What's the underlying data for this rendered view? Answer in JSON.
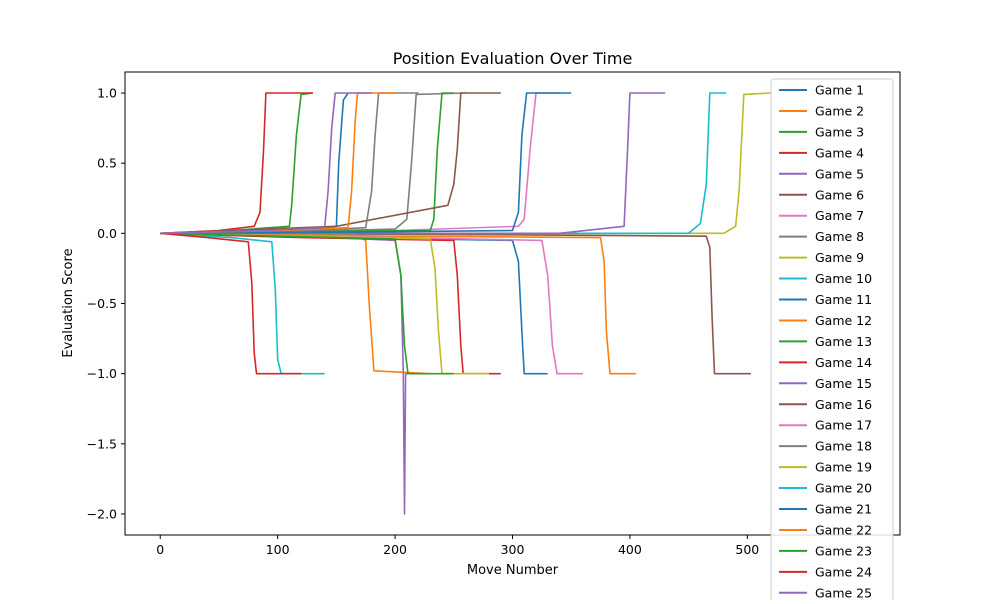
{
  "chart_data": {
    "type": "line",
    "title": "Position Evaluation Over Time",
    "xlabel": "Move Number",
    "ylabel": "Evaluation Score",
    "xlim": [
      -30,
      630
    ],
    "ylim": [
      -2.15,
      1.15
    ],
    "xticks": [
      0,
      100,
      200,
      300,
      400,
      500
    ],
    "yticks": [
      1.0,
      0.5,
      0.0,
      -0.5,
      -1.0,
      -1.5,
      -2.0
    ],
    "xtick_labels": [
      "0",
      "100",
      "200",
      "300",
      "400",
      "500"
    ],
    "ytick_labels": [
      "1.0",
      "0.5",
      "0.0",
      "−0.5",
      "−1.0",
      "−1.5",
      "−2.0"
    ],
    "grid": false,
    "legend_position": "upper-right",
    "colors": [
      "#1f77b4",
      "#ff7f0e",
      "#2ca02c",
      "#d62728",
      "#9467bd",
      "#8c564b",
      "#e377c2",
      "#7f7f7f",
      "#bcbd22",
      "#17becf"
    ],
    "series": [
      {
        "name": "Game 1",
        "x": [
          0,
          60,
          130,
          150,
          152,
          156,
          160
        ],
        "y": [
          0,
          0.01,
          0.03,
          0.05,
          0.5,
          0.95,
          1.0
        ]
      },
      {
        "name": "Game 2",
        "x": [
          0,
          80,
          170,
          175,
          178,
          182,
          230
        ],
        "y": [
          0,
          -0.02,
          -0.03,
          -0.05,
          -0.5,
          -0.98,
          -1.0
        ]
      },
      {
        "name": "Game 3",
        "x": [
          0,
          60,
          110,
          112,
          116,
          120,
          130
        ],
        "y": [
          0,
          0.02,
          0.05,
          0.2,
          0.7,
          0.99,
          1.0
        ]
      },
      {
        "name": "Game 4",
        "x": [
          0,
          50,
          80,
          85,
          88,
          90,
          130
        ],
        "y": [
          0,
          0.02,
          0.05,
          0.15,
          0.6,
          1.0,
          1.0
        ]
      },
      {
        "name": "Game 5",
        "x": [
          0,
          150,
          200,
          205,
          207,
          208,
          209,
          212
        ],
        "y": [
          0,
          -0.03,
          -0.05,
          -0.3,
          -1.0,
          -2.0,
          -1.0,
          -1.0
        ]
      },
      {
        "name": "Game 6",
        "x": [
          0,
          300,
          465,
          468,
          470,
          472,
          503
        ],
        "y": [
          0,
          -0.01,
          -0.02,
          -0.1,
          -0.6,
          -1.0,
          -1.0
        ]
      },
      {
        "name": "Game 7",
        "x": [
          0,
          200,
          305,
          310,
          315,
          320,
          340
        ],
        "y": [
          0,
          0.02,
          0.05,
          0.1,
          0.6,
          1.0,
          1.0
        ]
      },
      {
        "name": "Game 8",
        "x": [
          0,
          100,
          200,
          210,
          214,
          218,
          260
        ],
        "y": [
          0,
          0.01,
          0.03,
          0.1,
          0.5,
          0.99,
          1.0
        ]
      },
      {
        "name": "Game 9",
        "x": [
          0,
          300,
          480,
          490,
          493,
          497,
          520
        ],
        "y": [
          0,
          0.0,
          0.0,
          0.05,
          0.3,
          0.99,
          1.0
        ]
      },
      {
        "name": "Game 10",
        "x": [
          0,
          200,
          450,
          460,
          465,
          468,
          482
        ],
        "y": [
          0,
          0.0,
          0.0,
          0.07,
          0.35,
          1.0,
          1.0
        ]
      },
      {
        "name": "Game 11",
        "x": [
          0,
          150,
          300,
          305,
          308,
          310,
          330
        ],
        "y": [
          0,
          -0.03,
          -0.05,
          -0.2,
          -0.7,
          -1.0,
          -1.0
        ]
      },
      {
        "name": "Game 12",
        "x": [
          0,
          200,
          375,
          378,
          380,
          383,
          405
        ],
        "y": [
          0,
          -0.02,
          -0.03,
          -0.2,
          -0.7,
          -1.0,
          -1.0
        ]
      },
      {
        "name": "Game 13",
        "x": [
          0,
          100,
          230,
          233,
          236,
          240,
          250
        ],
        "y": [
          0,
          0.01,
          0.02,
          0.1,
          0.6,
          1.0,
          1.0
        ]
      },
      {
        "name": "Game 14",
        "x": [
          0,
          120,
          250,
          253,
          256,
          258,
          290
        ],
        "y": [
          0,
          -0.03,
          -0.05,
          -0.3,
          -0.8,
          -1.0,
          -1.0
        ]
      },
      {
        "name": "Game 15",
        "x": [
          0,
          150,
          300,
          340,
          395,
          398,
          400,
          430
        ],
        "y": [
          0,
          0.0,
          0.0,
          0.0,
          0.05,
          0.6,
          1.0,
          1.0
        ]
      },
      {
        "name": "Game 16",
        "x": [
          0,
          150,
          245,
          250,
          253,
          256,
          290
        ],
        "y": [
          0,
          0.05,
          0.2,
          0.35,
          0.6,
          1.0,
          1.0
        ]
      },
      {
        "name": "Game 17",
        "x": [
          0,
          200,
          325,
          330,
          334,
          338,
          360
        ],
        "y": [
          0,
          -0.03,
          -0.05,
          -0.3,
          -0.8,
          -1.0,
          -1.0
        ]
      },
      {
        "name": "Game 18",
        "x": [
          0,
          100,
          175,
          180,
          183,
          186,
          220
        ],
        "y": [
          0,
          0.01,
          0.04,
          0.3,
          0.7,
          1.0,
          1.0
        ]
      },
      {
        "name": "Game 19",
        "x": [
          0,
          120,
          230,
          234,
          237,
          240,
          280
        ],
        "y": [
          0,
          -0.02,
          -0.04,
          -0.25,
          -0.7,
          -1.0,
          -1.0
        ]
      },
      {
        "name": "Game 20",
        "x": [
          0,
          60,
          95,
          98,
          100,
          103,
          140
        ],
        "y": [
          0,
          -0.03,
          -0.06,
          -0.4,
          -0.9,
          -1.0,
          -1.0
        ]
      },
      {
        "name": "Game 21",
        "x": [
          0,
          180,
          300,
          305,
          308,
          312,
          350
        ],
        "y": [
          0,
          0.01,
          0.02,
          0.15,
          0.7,
          1.0,
          1.0
        ]
      },
      {
        "name": "Game 22",
        "x": [
          0,
          100,
          160,
          163,
          166,
          168,
          200
        ],
        "y": [
          0,
          0.02,
          0.04,
          0.3,
          0.8,
          1.0,
          1.0
        ]
      },
      {
        "name": "Game 23",
        "x": [
          0,
          100,
          200,
          205,
          208,
          211,
          250
        ],
        "y": [
          0,
          -0.02,
          -0.04,
          -0.3,
          -0.8,
          -1.0,
          -1.0
        ]
      },
      {
        "name": "Game 24",
        "x": [
          0,
          40,
          75,
          78,
          80,
          82,
          120
        ],
        "y": [
          0,
          -0.03,
          -0.06,
          -0.35,
          -0.85,
          -1.0,
          -1.0
        ]
      },
      {
        "name": "Game 25",
        "x": [
          0,
          90,
          140,
          143,
          146,
          149,
          180
        ],
        "y": [
          0,
          0.02,
          0.04,
          0.3,
          0.75,
          1.0,
          1.0
        ]
      }
    ]
  }
}
